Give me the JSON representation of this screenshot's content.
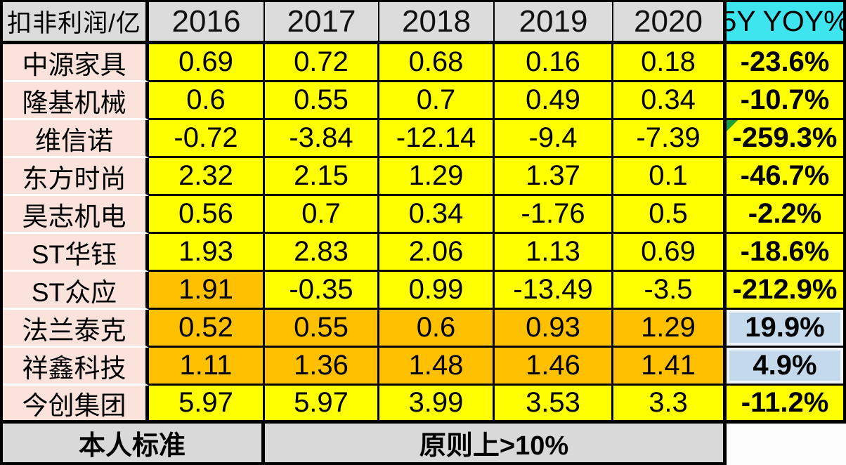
{
  "colors": {
    "header_bg": "#dcdcdc",
    "yoy_header_bg": "#3ee4ee",
    "name_bg": "#fbe2db",
    "value_bg": "#ffff00",
    "highlight_bg": "#ffc000",
    "positive_bg": "#c4d9ec",
    "footer_bg": "#d9d9d9",
    "flag_green": "#1f9d3f",
    "border": "#000000"
  },
  "table": {
    "header": {
      "metric_label": "扣非利润/亿",
      "years": [
        "2016",
        "2017",
        "2018",
        "2019",
        "2020"
      ],
      "yoy_label": "5Y YOY%"
    },
    "rows": [
      {
        "name": "中源家具",
        "values": [
          "0.69",
          "0.72",
          "0.68",
          "0.16",
          "0.18"
        ],
        "yoy": "-23.6%",
        "orange_cols": [],
        "yoy_positive": false,
        "comment_flag": false
      },
      {
        "name": "隆基机械",
        "values": [
          "0.6",
          "0.55",
          "0.7",
          "0.49",
          "0.34"
        ],
        "yoy": "-10.7%",
        "orange_cols": [],
        "yoy_positive": false,
        "comment_flag": false
      },
      {
        "name": "维信诺",
        "values": [
          "-0.72",
          "-3.84",
          "-12.14",
          "-9.4",
          "-7.39"
        ],
        "yoy": "-259.3%",
        "orange_cols": [],
        "yoy_positive": false,
        "comment_flag": true
      },
      {
        "name": "东方时尚",
        "values": [
          "2.32",
          "2.15",
          "1.29",
          "1.37",
          "0.1"
        ],
        "yoy": "-46.7%",
        "orange_cols": [],
        "yoy_positive": false,
        "comment_flag": false
      },
      {
        "name": "昊志机电",
        "values": [
          "0.56",
          "0.7",
          "0.34",
          "-1.76",
          "0.5"
        ],
        "yoy": "-2.2%",
        "orange_cols": [],
        "yoy_positive": false,
        "comment_flag": false
      },
      {
        "name": "ST华钰",
        "values": [
          "1.93",
          "2.83",
          "2.06",
          "1.13",
          "0.69"
        ],
        "yoy": "-18.6%",
        "orange_cols": [],
        "yoy_positive": false,
        "comment_flag": false
      },
      {
        "name": "ST众应",
        "values": [
          "1.91",
          "-0.35",
          "0.99",
          "-13.49",
          "-3.5"
        ],
        "yoy": "-212.9%",
        "orange_cols": [
          0
        ],
        "yoy_positive": false,
        "comment_flag": false
      },
      {
        "name": "法兰泰克",
        "values": [
          "0.52",
          "0.55",
          "0.6",
          "0.93",
          "1.29"
        ],
        "yoy": "19.9%",
        "orange_cols": [
          0,
          1,
          2,
          3,
          4
        ],
        "yoy_positive": true,
        "comment_flag": false
      },
      {
        "name": "祥鑫科技",
        "values": [
          "1.11",
          "1.36",
          "1.48",
          "1.46",
          "1.41"
        ],
        "yoy": "4.9%",
        "orange_cols": [
          0,
          1,
          2,
          3,
          4
        ],
        "yoy_positive": true,
        "comment_flag": false
      },
      {
        "name": "今创集团",
        "values": [
          "5.97",
          "5.97",
          "3.99",
          "3.53",
          "3.3"
        ],
        "yoy": "-11.2%",
        "orange_cols": [],
        "yoy_positive": false,
        "comment_flag": false
      }
    ],
    "footer": {
      "standard_label": "本人标准",
      "rule_text": "原则上>10%"
    }
  }
}
